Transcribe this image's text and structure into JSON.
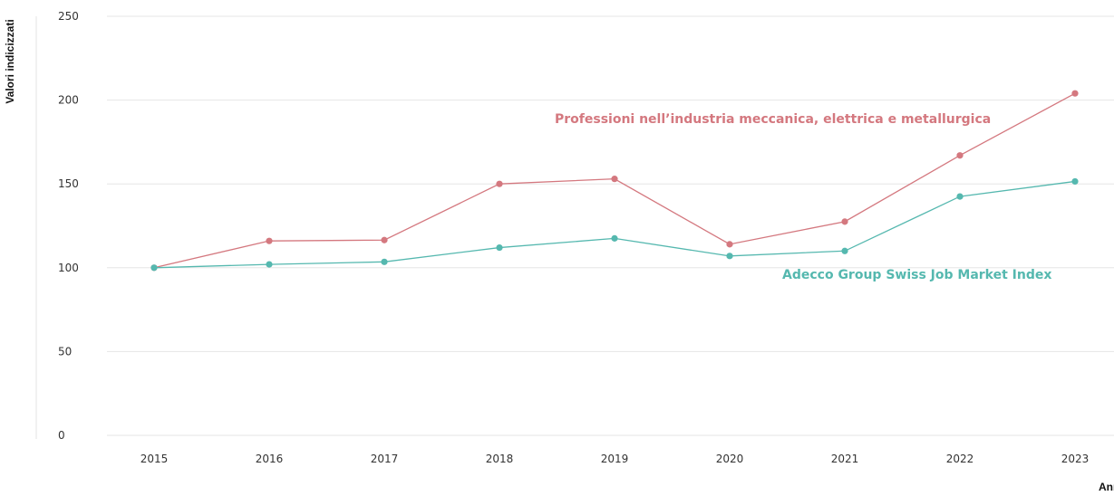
{
  "chart_data": {
    "type": "line",
    "title": "",
    "xlabel": "Anni",
    "ylabel": "Valori indicizzati",
    "categories": [
      "2015",
      "2016",
      "2017",
      "2018",
      "2019",
      "2020",
      "2021",
      "2022",
      "2023"
    ],
    "yticks": [
      "0",
      "50",
      "100",
      "150",
      "200",
      "250"
    ],
    "ylim": [
      0,
      250
    ],
    "grid": "horizontal",
    "legend": "direct labels on lines",
    "series": [
      {
        "name": "Professioni nell’industria meccanica, elettrica e metallurgica",
        "color": "#d4787f",
        "values": [
          100,
          116,
          116.5,
          150,
          153,
          114,
          127.5,
          167,
          204
        ]
      },
      {
        "name": "Adecco Group Swiss Job Market Index",
        "color": "#55b8af",
        "values": [
          100,
          102,
          103.5,
          112,
          117.5,
          107,
          110,
          142.5,
          151.5
        ]
      }
    ]
  }
}
